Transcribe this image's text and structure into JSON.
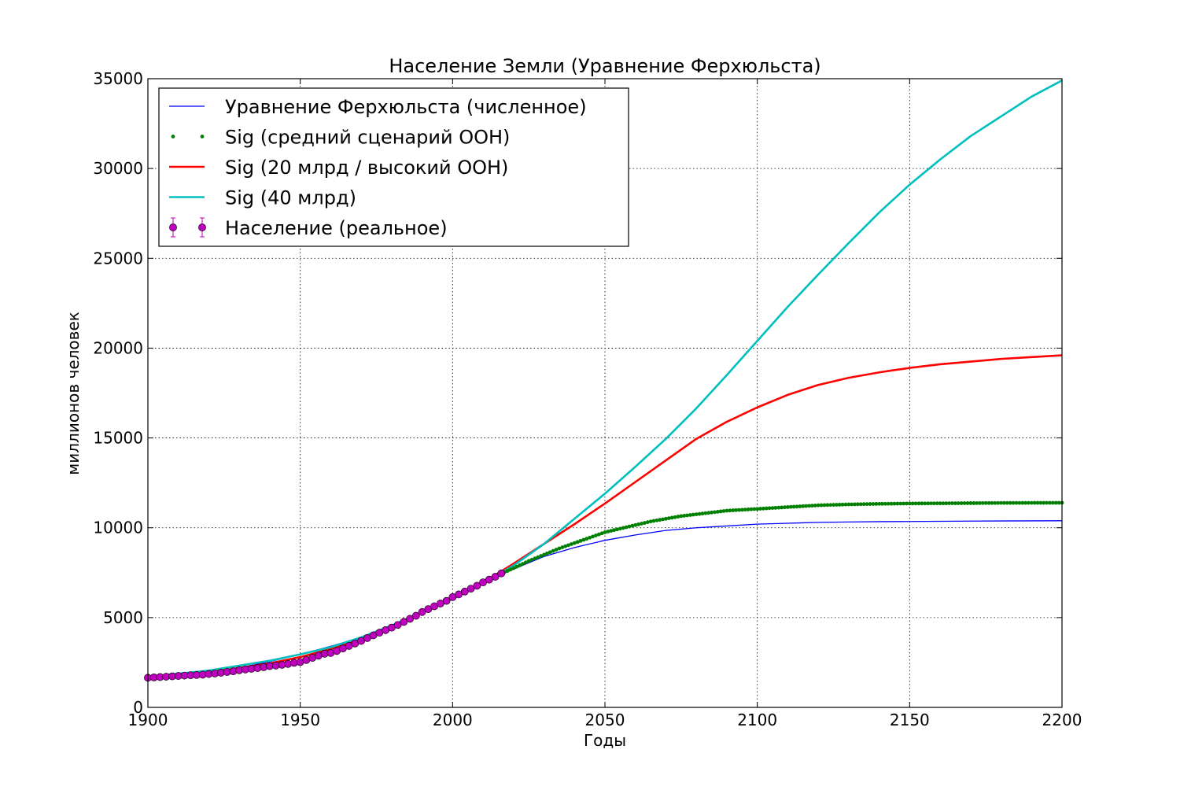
{
  "chart_data": {
    "type": "line",
    "title": "Население Земли (Уравнение Ферхюльста)",
    "xlabel": "Годы",
    "ylabel": "миллионов человек",
    "xlim": [
      1900,
      2200
    ],
    "ylim": [
      0,
      35000
    ],
    "xticks": [
      1900,
      1950,
      2000,
      2050,
      2100,
      2150,
      2200
    ],
    "yticks": [
      0,
      5000,
      10000,
      15000,
      20000,
      25000,
      30000,
      35000
    ],
    "grid": true,
    "legend_position": "top-left",
    "series": [
      {
        "name": "Уравнение Ферхюльста (численное)",
        "style": "line",
        "color": "#0000ff",
        "x": [
          1900,
          1910,
          1920,
          1930,
          1940,
          1950,
          1960,
          1970,
          1980,
          1990,
          2000,
          2010,
          2020,
          2030,
          2040,
          2050,
          2060,
          2070,
          2080,
          2090,
          2100,
          2110,
          2120,
          2130,
          2140,
          2150,
          2160,
          2170,
          2180,
          2190,
          2200
        ],
        "y": [
          1700,
          1800,
          1950,
          2200,
          2550,
          2950,
          3400,
          3900,
          4550,
          5250,
          6050,
          6900,
          7700,
          8400,
          8900,
          9300,
          9600,
          9850,
          10000,
          10100,
          10200,
          10250,
          10300,
          10320,
          10340,
          10350,
          10360,
          10370,
          10380,
          10385,
          10390
        ]
      },
      {
        "name": "Sig (средний сценарий ООН)",
        "style": "dots",
        "color": "#008000",
        "x": [
          2016,
          2020,
          2025,
          2030,
          2035,
          2040,
          2045,
          2050,
          2055,
          2060,
          2065,
          2070,
          2075,
          2080,
          2085,
          2090,
          2095,
          2100,
          2110,
          2120,
          2130,
          2140,
          2150,
          2160,
          2170,
          2180,
          2190,
          2200
        ],
        "y": [
          7450,
          7750,
          8150,
          8500,
          8850,
          9150,
          9450,
          9750,
          9950,
          10150,
          10350,
          10500,
          10650,
          10750,
          10850,
          10950,
          11000,
          11050,
          11150,
          11250,
          11300,
          11330,
          11350,
          11360,
          11370,
          11380,
          11385,
          11390
        ]
      },
      {
        "name": "Sig (20 млрд / высокий ООН)",
        "style": "line",
        "color": "#ff0000",
        "x": [
          1900,
          1920,
          1940,
          1950,
          1960,
          1970,
          1980,
          1990,
          2000,
          2010,
          2020,
          2030,
          2040,
          2050,
          2060,
          2070,
          2080,
          2090,
          2100,
          2110,
          2120,
          2130,
          2140,
          2150,
          2160,
          2170,
          2180,
          2190,
          2200
        ],
        "y": [
          1650,
          1950,
          2450,
          2800,
          3250,
          3800,
          4500,
          5300,
          6100,
          6950,
          8000,
          9100,
          10200,
          11350,
          12550,
          13750,
          14950,
          15900,
          16700,
          17400,
          17950,
          18350,
          18650,
          18900,
          19100,
          19250,
          19400,
          19500,
          19600
        ]
      },
      {
        "name": "Sig (40 млрд)",
        "style": "line",
        "color": "#00bfbf",
        "x": [
          1900,
          1920,
          1940,
          1950,
          1960,
          1970,
          1980,
          1990,
          2000,
          2010,
          2020,
          2030,
          2040,
          2050,
          2060,
          2070,
          2080,
          2090,
          2100,
          2110,
          2120,
          2130,
          2140,
          2150,
          2160,
          2170,
          2180,
          2190,
          2200
        ],
        "y": [
          1700,
          2050,
          2600,
          2950,
          3350,
          3900,
          4550,
          5300,
          6050,
          6900,
          7900,
          9100,
          10500,
          11900,
          13400,
          14950,
          16650,
          18500,
          20400,
          22300,
          24100,
          25850,
          27550,
          29100,
          30500,
          31800,
          32900,
          34000,
          34900
        ]
      },
      {
        "name": "Население (реальное)",
        "style": "markers_errorbars",
        "color": "#bf00bf",
        "x": [
          1900,
          1902,
          1904,
          1906,
          1908,
          1910,
          1912,
          1914,
          1916,
          1918,
          1920,
          1922,
          1924,
          1926,
          1928,
          1930,
          1932,
          1934,
          1936,
          1938,
          1940,
          1942,
          1944,
          1946,
          1948,
          1950,
          1952,
          1954,
          1956,
          1958,
          1960,
          1962,
          1964,
          1966,
          1968,
          1970,
          1972,
          1974,
          1976,
          1978,
          1980,
          1982,
          1984,
          1986,
          1988,
          1990,
          1992,
          1994,
          1996,
          1998,
          2000,
          2002,
          2004,
          2006,
          2008,
          2010,
          2012,
          2014,
          2016
        ],
        "y": [
          1650,
          1670,
          1690,
          1710,
          1730,
          1750,
          1770,
          1790,
          1800,
          1820,
          1860,
          1890,
          1930,
          1970,
          2010,
          2070,
          2110,
          2150,
          2190,
          2240,
          2300,
          2330,
          2370,
          2420,
          2480,
          2525,
          2640,
          2760,
          2880,
          2990,
          3030,
          3140,
          3280,
          3420,
          3560,
          3700,
          3860,
          4010,
          4160,
          4300,
          4440,
          4590,
          4760,
          4930,
          5100,
          5310,
          5470,
          5630,
          5780,
          5930,
          6140,
          6290,
          6450,
          6610,
          6770,
          6960,
          7110,
          7270,
          7460
        ]
      }
    ]
  }
}
